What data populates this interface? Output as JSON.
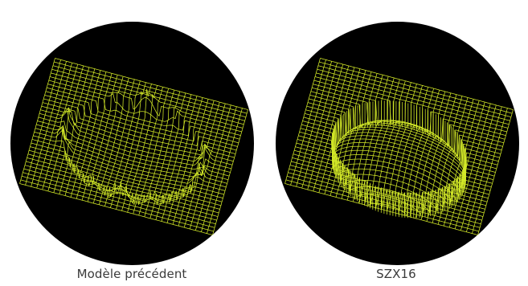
{
  "panels": [
    {
      "caption": "Modèle précédent",
      "surface": "flat-with-edge-spikes"
    },
    {
      "caption": "SZX16",
      "surface": "dome-in-cylinder"
    }
  ],
  "colors": {
    "mesh": "#d4ea28",
    "background": "#000000",
    "page": "#ffffff",
    "caption": "#3a3a3a"
  }
}
